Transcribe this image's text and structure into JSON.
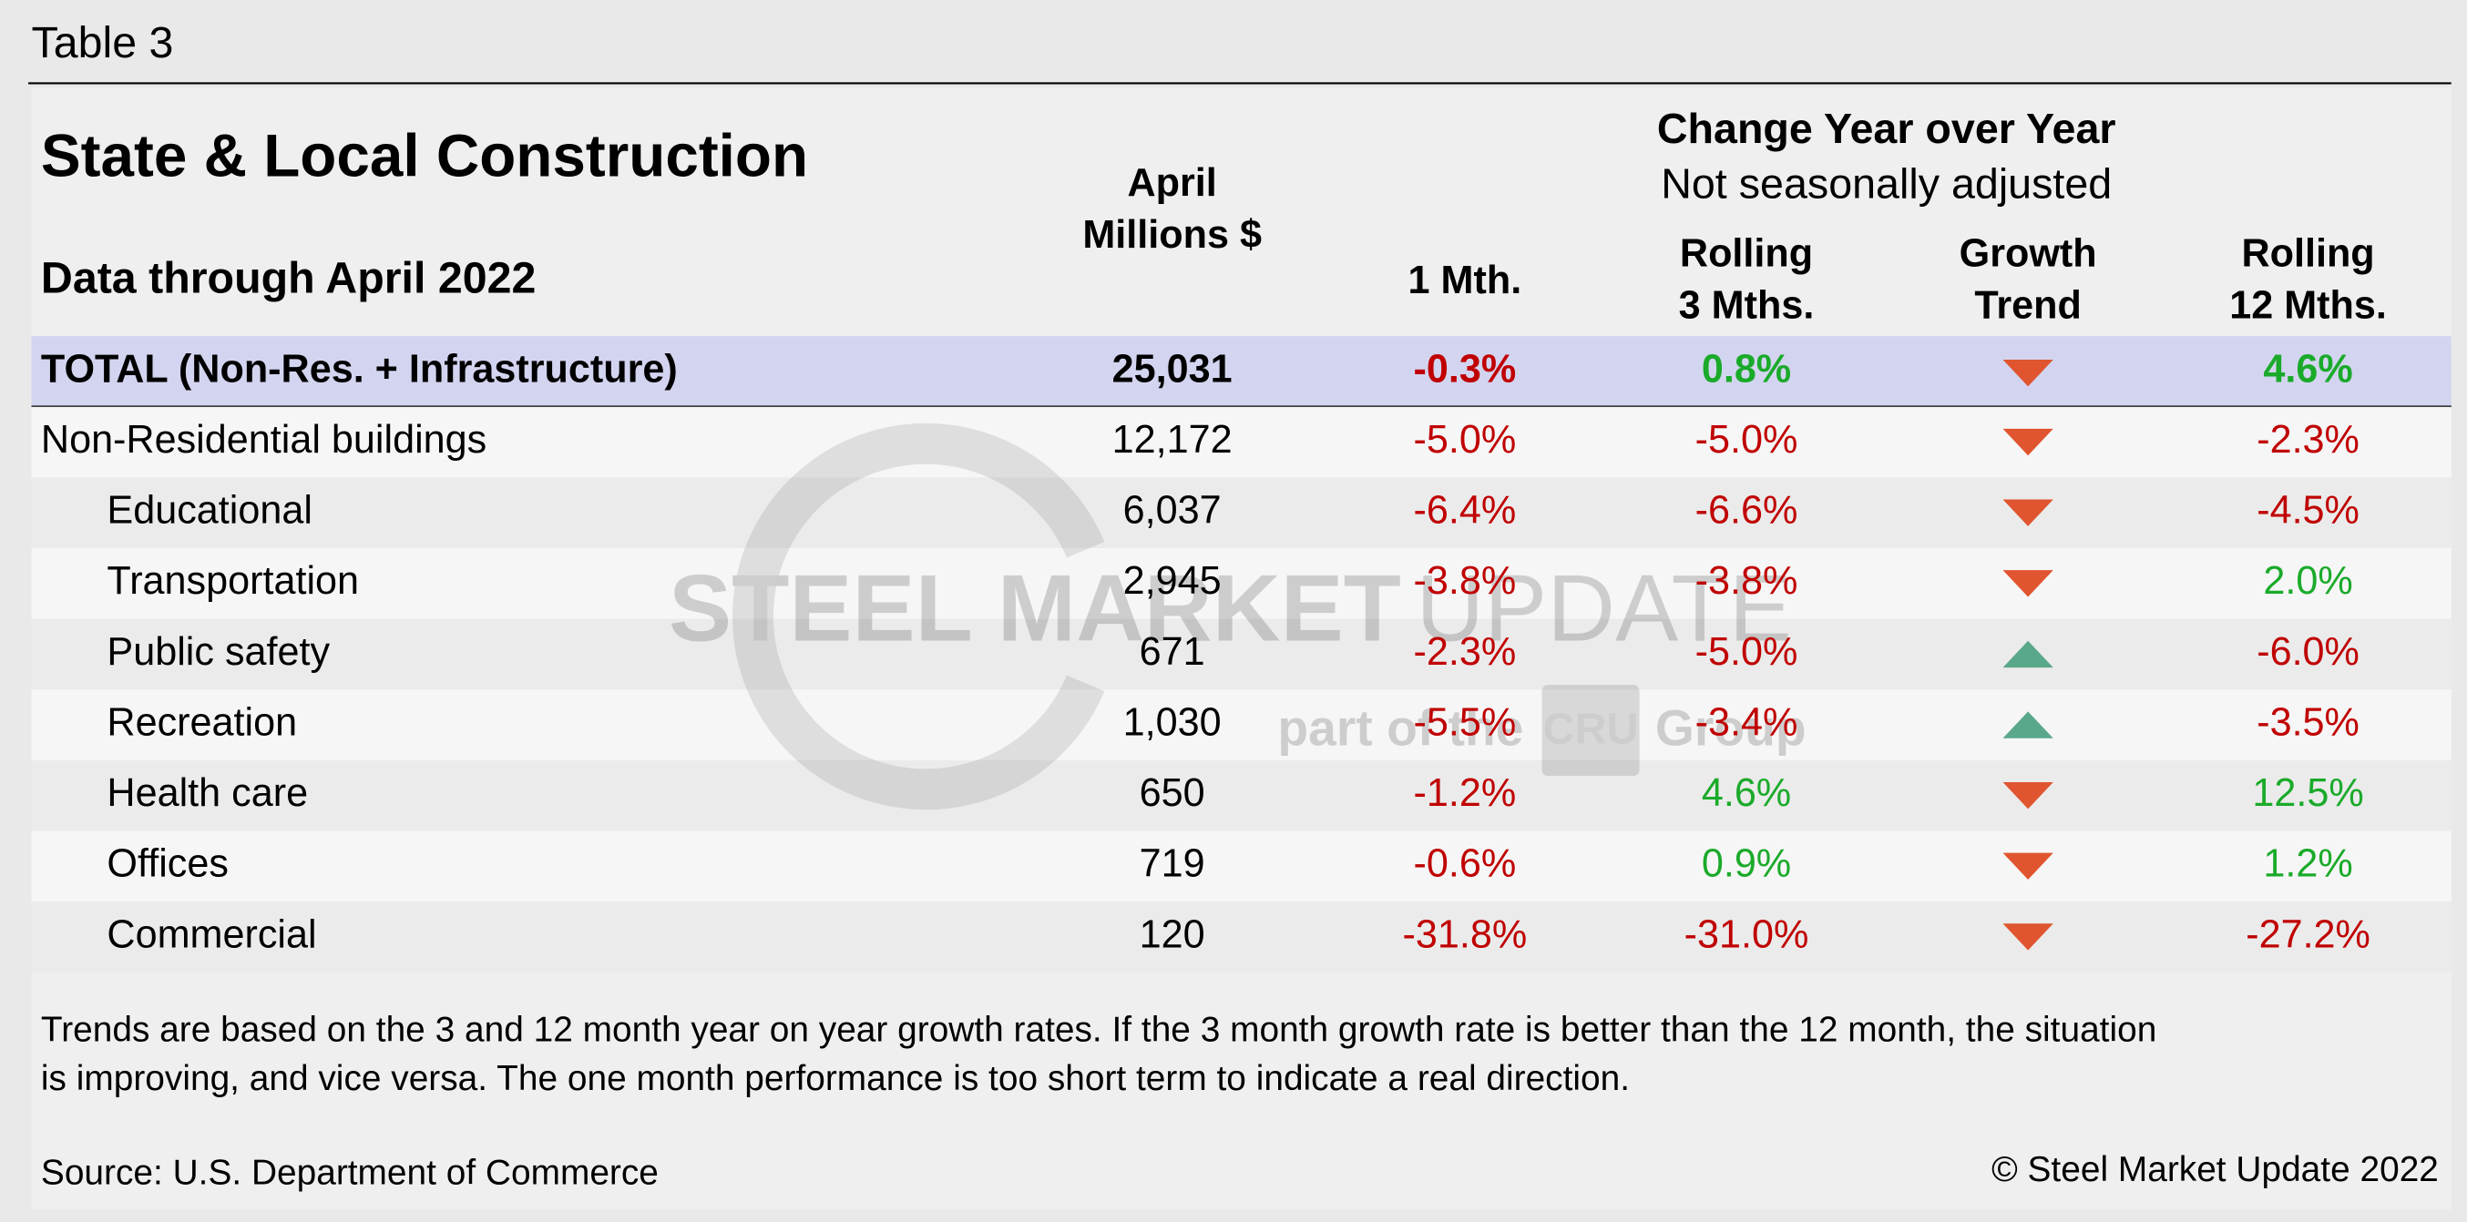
{
  "header": {
    "label": "Table 3"
  },
  "table": {
    "title": "State & Local Construction",
    "subtitle": "Data through April 2022",
    "group_header": [
      "Change Year over Year",
      "Not seasonally adjusted"
    ],
    "columns": [
      [
        "April",
        "Millions $"
      ],
      [
        "1 Mth."
      ],
      [
        "Rolling",
        "3 Mths."
      ],
      [
        "Growth",
        "Trend"
      ],
      [
        "Rolling",
        "12 Mths."
      ]
    ],
    "rows": [
      [
        "TOTAL (Non-Res. + Infrastructure)",
        "25,031",
        "-0.3%",
        "0.8%",
        "4.6%"
      ],
      [
        "Non-Residential buildings",
        "12,172",
        "-5.0%",
        "-5.0%",
        "-2.3%"
      ],
      [
        "Educational",
        "6,037",
        "-6.4%",
        "-6.6%",
        "-4.5%"
      ],
      [
        "Transportation",
        "2,945",
        "-3.8%",
        "-3.8%",
        "2.0%"
      ],
      [
        "Public safety",
        "671",
        "-2.3%",
        "-5.0%",
        "-6.0%"
      ],
      [
        "Recreation",
        "1,030",
        "-5.5%",
        "-3.4%",
        "-3.5%"
      ],
      [
        "Health care",
        "650",
        "-1.2%",
        "4.6%",
        "12.5%"
      ],
      [
        "Offices",
        "719",
        "-0.6%",
        "0.9%",
        "1.2%"
      ],
      [
        "Commercial",
        "120",
        "-31.8%",
        "-31.0%",
        "-27.2%"
      ]
    ]
  },
  "watermark": {
    "brand": "STEEL MARKET",
    "brand_light": "UPDATE",
    "tagline": "part of the",
    "logo": "CRU",
    "group": "Group"
  },
  "footnote": [
    "Trends are based on the 3 and 12 month year on year growth rates. If the 3 month growth rate is better than the 12 month, the situation",
    "is improving, and vice versa. The one month performance is too short term to indicate a real direction."
  ],
  "source": "Source: U.S. Department of Commerce",
  "copyright": "© Steel Market Update 2022"
}
